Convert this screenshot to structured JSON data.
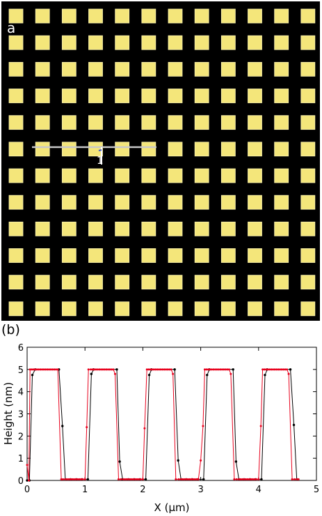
{
  "panel_a": {
    "label": "a",
    "grid": {
      "rows": 12,
      "cols": 12
    },
    "colors": {
      "background": "#000000",
      "square": "#f4e67a",
      "square_edge": "#fbf3b0",
      "line": "#c8c8c8",
      "marker": "#ffffff",
      "marker_tip": "#3b55c9"
    },
    "marker_label": "1"
  },
  "panel_b": {
    "label": "(b)"
  },
  "chart_data": {
    "type": "line",
    "title": "",
    "xlabel": "X (µm)",
    "ylabel": "Height (nm)",
    "xlim": [
      0,
      5
    ],
    "ylim": [
      0,
      6
    ],
    "xticks": [
      "0",
      "1",
      "2",
      "3",
      "4",
      "5"
    ],
    "yticks": [
      "0",
      "1",
      "2",
      "3",
      "4",
      "5",
      "6"
    ],
    "grid": false,
    "legend": "none",
    "series": [
      {
        "color": "#000000",
        "x": [
          0.0,
          0.04,
          0.09,
          0.14,
          0.55,
          0.61,
          0.66,
          0.75,
          0.85,
          0.95,
          1.05,
          1.11,
          1.15,
          1.55,
          1.6,
          1.65,
          1.75,
          1.85,
          1.95,
          2.05,
          2.11,
          2.15,
          2.55,
          2.61,
          2.66,
          2.75,
          2.85,
          2.95,
          3.05,
          3.11,
          3.15,
          3.56,
          3.61,
          3.66,
          3.75,
          3.85,
          3.95,
          4.05,
          4.11,
          4.15,
          4.55,
          4.61,
          4.66
        ],
        "y": [
          0.0,
          0.0,
          4.75,
          5.0,
          5.0,
          2.45,
          0.05,
          0.05,
          0.05,
          0.05,
          0.05,
          4.8,
          5.0,
          5.0,
          0.85,
          0.05,
          0.05,
          0.05,
          0.05,
          0.05,
          4.75,
          5.0,
          5.0,
          0.9,
          0.05,
          0.05,
          0.05,
          0.05,
          0.05,
          4.75,
          5.0,
          5.0,
          0.85,
          0.05,
          0.05,
          0.05,
          0.05,
          0.05,
          4.75,
          5.0,
          5.0,
          2.5,
          0.05
        ]
      },
      {
        "color": "#e8001c",
        "x": [
          0.0,
          0.03,
          0.05,
          0.08,
          0.11,
          0.14,
          0.17,
          0.2,
          0.23,
          0.26,
          0.29,
          0.32,
          0.35,
          0.38,
          0.41,
          0.44,
          0.47,
          0.5,
          0.53,
          0.59,
          0.62,
          0.66,
          0.69,
          0.72,
          0.75,
          0.78,
          0.81,
          0.84,
          0.87,
          0.9,
          0.93,
          0.96,
          1.0,
          1.03,
          1.06,
          1.1,
          1.13,
          1.16,
          1.19,
          1.22,
          1.25,
          1.28,
          1.31,
          1.34,
          1.37,
          1.4,
          1.43,
          1.46,
          1.49,
          1.52,
          1.58,
          1.62,
          1.66,
          1.69,
          1.72,
          1.75,
          1.78,
          1.81,
          1.84,
          1.87,
          1.9,
          1.93,
          1.96,
          2.0,
          2.03,
          2.07,
          2.1,
          2.13,
          2.16,
          2.19,
          2.22,
          2.25,
          2.28,
          2.31,
          2.34,
          2.37,
          2.4,
          2.43,
          2.46,
          2.49,
          2.52,
          2.57,
          2.62,
          2.66,
          2.69,
          2.72,
          2.75,
          2.78,
          2.81,
          2.84,
          2.87,
          2.9,
          2.93,
          2.96,
          3.0,
          3.04,
          3.07,
          3.1,
          3.13,
          3.16,
          3.19,
          3.22,
          3.25,
          3.28,
          3.31,
          3.34,
          3.37,
          3.4,
          3.43,
          3.46,
          3.49,
          3.52,
          3.58,
          3.62,
          3.66,
          3.69,
          3.72,
          3.75,
          3.78,
          3.81,
          3.84,
          3.87,
          3.9,
          3.93,
          3.96,
          4.0,
          4.04,
          4.07,
          4.1,
          4.13,
          4.16,
          4.19,
          4.22,
          4.25,
          4.28,
          4.31,
          4.34,
          4.37,
          4.4,
          4.43,
          4.46,
          4.49,
          4.52,
          4.58,
          4.62,
          4.66,
          4.69
        ],
        "y": [
          0.7,
          0.0,
          5.0,
          5.0,
          5.0,
          5.0,
          5.0,
          5.0,
          5.0,
          5.0,
          5.0,
          5.0,
          5.0,
          5.0,
          5.0,
          5.0,
          5.0,
          5.0,
          5.0,
          0.05,
          0.05,
          0.05,
          0.05,
          0.05,
          0.05,
          0.05,
          0.05,
          0.05,
          0.05,
          0.05,
          0.05,
          0.05,
          0.05,
          2.4,
          5.0,
          5.0,
          5.0,
          5.0,
          5.0,
          5.0,
          5.0,
          5.0,
          5.0,
          5.0,
          5.0,
          5.0,
          5.0,
          5.0,
          5.0,
          4.8,
          0.05,
          0.05,
          0.05,
          0.05,
          0.05,
          0.05,
          0.05,
          0.05,
          0.05,
          0.05,
          0.05,
          0.05,
          0.05,
          0.05,
          2.35,
          5.0,
          5.0,
          5.0,
          5.0,
          5.0,
          5.0,
          5.0,
          5.0,
          5.0,
          5.0,
          5.0,
          5.0,
          5.0,
          5.0,
          5.0,
          4.8,
          0.05,
          0.05,
          0.05,
          0.05,
          0.05,
          0.05,
          0.05,
          0.05,
          0.05,
          0.05,
          0.05,
          0.05,
          0.05,
          0.9,
          2.45,
          5.0,
          5.0,
          5.0,
          5.0,
          5.0,
          5.0,
          5.0,
          5.0,
          5.0,
          5.0,
          5.0,
          5.0,
          5.0,
          5.0,
          5.0,
          4.8,
          0.05,
          0.05,
          0.05,
          0.05,
          0.05,
          0.05,
          0.05,
          0.05,
          0.05,
          0.05,
          0.05,
          0.05,
          0.05,
          0.05,
          2.45,
          5.0,
          5.0,
          5.0,
          5.0,
          5.0,
          5.0,
          5.0,
          5.0,
          5.0,
          5.0,
          5.0,
          5.0,
          5.0,
          5.0,
          5.0,
          4.8,
          0.05,
          0.05,
          0.05,
          0.05
        ]
      }
    ]
  }
}
